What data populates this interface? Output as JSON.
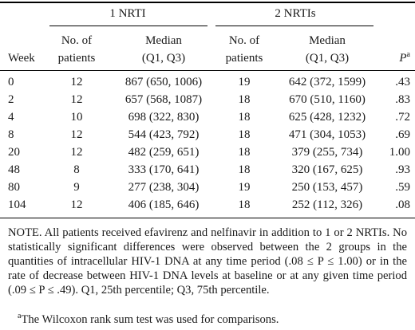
{
  "table": {
    "group_headers": [
      "1 NRTI",
      "2 NRTIs"
    ],
    "columns": {
      "week": "Week",
      "n1_line1": "No. of",
      "n1_line2": "patients",
      "median1_line1": "Median",
      "median1_line2": "(Q1, Q3)",
      "n2_line1": "No. of",
      "n2_line2": "patients",
      "median2_line1": "Median",
      "median2_line2": "(Q1, Q3)",
      "p_letter": "P",
      "p_sup": "a"
    },
    "rows": [
      {
        "week": "0",
        "n1": "12",
        "med1": "867 (650, 1006)",
        "n2": "19",
        "med2": "642 (372, 1599)",
        "p": ".43"
      },
      {
        "week": "2",
        "n1": "12",
        "med1": "657 (568, 1087)",
        "n2": "18",
        "med2": "670 (510, 1160)",
        "p": ".83"
      },
      {
        "week": "4",
        "n1": "10",
        "med1": "698 (322, 830)",
        "n2": "18",
        "med2": "625 (428, 1232)",
        "p": ".72"
      },
      {
        "week": "8",
        "n1": "12",
        "med1": "544 (423, 792)",
        "n2": "18",
        "med2": "471 (304, 1053)",
        "p": ".69"
      },
      {
        "week": "20",
        "n1": "12",
        "med1": "482 (259, 651)",
        "n2": "18",
        "med2": "379 (255, 734)",
        "p": "1.00"
      },
      {
        "week": "48",
        "n1": "8",
        "med1": "333 (170, 641)",
        "n2": "18",
        "med2": "320 (167, 625)",
        "p": ".93"
      },
      {
        "week": "80",
        "n1": "9",
        "med1": "277 (238, 304)",
        "n2": "19",
        "med2": "250 (153, 457)",
        "p": ".59"
      },
      {
        "week": "104",
        "n1": "12",
        "med1": "406 (185, 646)",
        "n2": "18",
        "med2": "252 (112, 326)",
        "p": ".08"
      }
    ]
  },
  "note": {
    "text": "NOTE.  All patients received efavirenz and nelfinavir in addition to 1 or 2 NRTIs. No statistically significant differences were observed between the 2 groups in the quantities of intracellular HIV-1 DNA at any time period (.08 ≤ P ≤ 1.00) or in the rate of decrease between HIV-1 DNA levels at baseline or at any given time period (.09 ≤ P ≤ .49). Q1, 25th percentile; Q3, 75th percentile."
  },
  "footnote": {
    "marker": "a",
    "text": "The Wilcoxon rank sum test was used for comparisons."
  }
}
